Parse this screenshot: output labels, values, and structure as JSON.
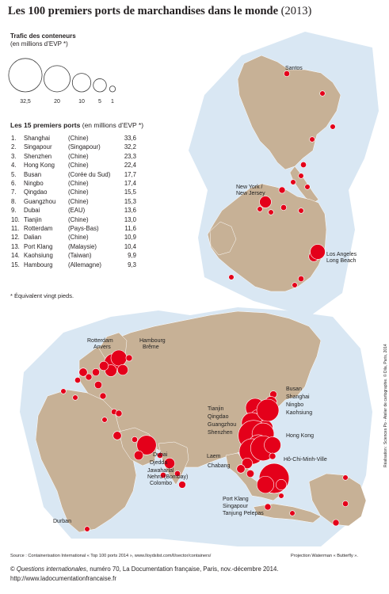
{
  "title": "Les 100 premiers ports de marchandises dans le monde",
  "title_year": "(2013)",
  "legend": {
    "title": "Trafic des conteneurs",
    "subtitle": "(en millions d’EVP *)",
    "sizes": [
      {
        "label": "32,5",
        "value": 32.5
      },
      {
        "label": "20",
        "value": 20
      },
      {
        "label": "10",
        "value": 10
      },
      {
        "label": "5",
        "value": 5
      },
      {
        "label": "1",
        "value": 1
      }
    ]
  },
  "ranking": {
    "title": "Les 15 premiers ports",
    "unit": "(en millions d’EVP *)",
    "rows": [
      {
        "rank": "1.",
        "port": "Shanghai",
        "country": "(Chine)",
        "value": "33,6"
      },
      {
        "rank": "2.",
        "port": "Singapour",
        "country": "(Singapour)",
        "value": "32,2"
      },
      {
        "rank": "3.",
        "port": "Shenzhen",
        "country": "(Chine)",
        "value": "23,3"
      },
      {
        "rank": "4.",
        "port": "Hong Kong",
        "country": "(Chine)",
        "value": "22,4"
      },
      {
        "rank": "5.",
        "port": "Busan",
        "country": "(Corée du Sud)",
        "value": "17,7"
      },
      {
        "rank": "6.",
        "port": "Ningbo",
        "country": "(Chine)",
        "value": "17,4"
      },
      {
        "rank": "7.",
        "port": "Qingdao",
        "country": "(Chine)",
        "value": "15,5"
      },
      {
        "rank": "8.",
        "port": "Guangzhou",
        "country": "(Chine)",
        "value": "15,3"
      },
      {
        "rank": "9.",
        "port": "Dubai",
        "country": "(EAU)",
        "value": "13,6"
      },
      {
        "rank": "10.",
        "port": "Tianjin",
        "country": "(Chine)",
        "value": "13,0"
      },
      {
        "rank": "11.",
        "port": "Rotterdam",
        "country": "(Pays-Bas)",
        "value": "11,6"
      },
      {
        "rank": "12.",
        "port": "Dalian",
        "country": "(Chine)",
        "value": "10,9"
      },
      {
        "rank": "13.",
        "port": "Port Klang",
        "country": "(Malaysie)",
        "value": "10,4"
      },
      {
        "rank": "14.",
        "port": "Kaohsiung",
        "country": "(Taiwan)",
        "value": "9,9"
      },
      {
        "rank": "15.",
        "port": "Hambourg",
        "country": "(Allemagne)",
        "value": "9,3"
      }
    ]
  },
  "footnote": "* Équivalent vingt pieds.",
  "map_labels": [
    "Santos",
    "New York /",
    "New Jersey",
    "Los Angeles",
    "Long Beach",
    "Rotterdam",
    "Anvers",
    "Hambourg",
    "Brême",
    "Busan",
    "Shanghai",
    "Ningbo",
    "Kaohsiung",
    "Hong Kong",
    "Tianjin",
    "Qingdao",
    "Guangzhou",
    "Shenzhen",
    "Laem",
    "Chabang",
    "Hô-Chi-Minh-Ville",
    "Dubai",
    "Djedda",
    "Jawaharlal",
    "Nehru (Bombay)",
    "Colombo",
    "Port Klang",
    "Singapour",
    "Tanjung Pelepas",
    "Durban"
  ],
  "source": "Source : Containerisation International « Top 100 ports 2014 », www.lloydslist.com/ll/sector/containers/",
  "projection": "Projection Waterman « Butterfly ».",
  "realisation": "Réalisation : Sciences Po - Atelier de cartographie. © Dila, Paris, 2014",
  "credit_prefix": "© ",
  "credit_pub": "Questions internationales",
  "credit_rest": ", numéro 70, La Documentation française, Paris, nov.-décembre 2014.",
  "url": "http://www.ladocumentationfrancaise.fr",
  "colors": {
    "ocean": "#d9e7f3",
    "land": "#c7b196",
    "port": "#e4001a"
  }
}
